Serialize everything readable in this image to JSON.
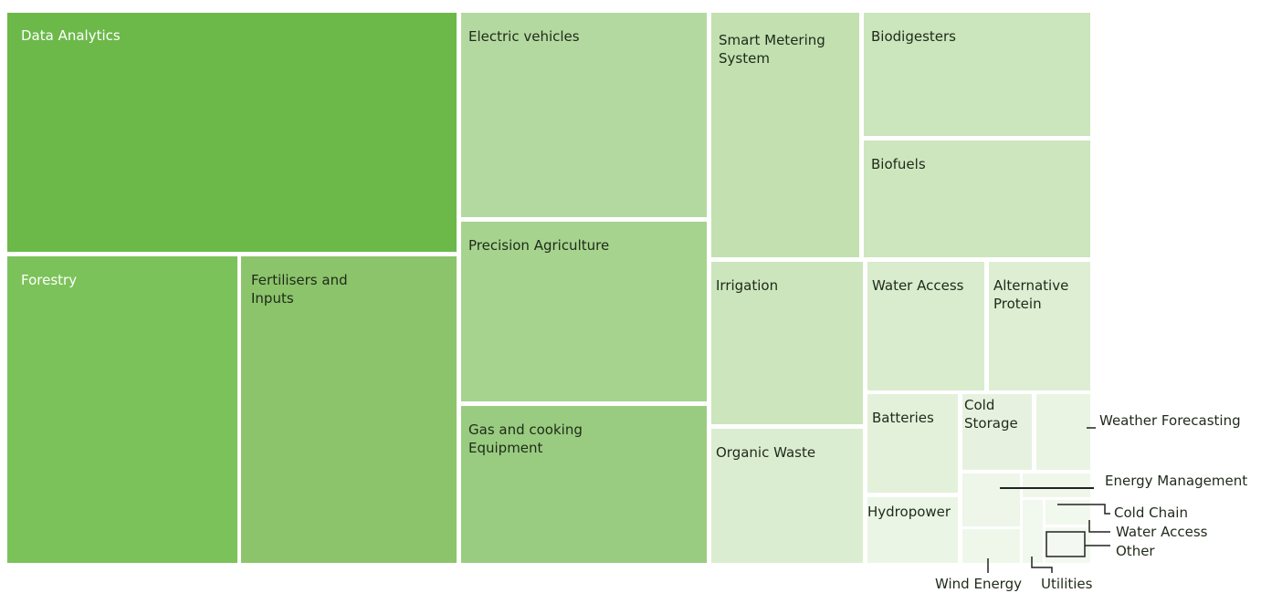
{
  "tiles": [
    {
      "label": "Data Analytics"
    },
    {
      "label": "Forestry"
    },
    {
      "label": "Fertilisers and Inputs"
    },
    {
      "label": "Electric vehicles"
    },
    {
      "label": "Precision Agriculture"
    },
    {
      "label": "Gas and cooking Equipment"
    },
    {
      "label": "Smart Metering System"
    },
    {
      "label": "Biodigesters"
    },
    {
      "label": "Biofuels"
    },
    {
      "label": "Irrigation"
    },
    {
      "label": "Organic Waste"
    },
    {
      "label": "Water Access"
    },
    {
      "label": "Alternative Protein"
    },
    {
      "label": "Batteries"
    },
    {
      "label": "Cold Storage"
    },
    {
      "label": "Hydropower"
    }
  ],
  "callouts": [
    {
      "label": "Weather Forecasting"
    },
    {
      "label": "Energy Management"
    },
    {
      "label": "Cold Chain"
    },
    {
      "label": "Water Access"
    },
    {
      "label": "Other"
    },
    {
      "label": "Wind Energy"
    },
    {
      "label": "Utilities"
    }
  ]
}
